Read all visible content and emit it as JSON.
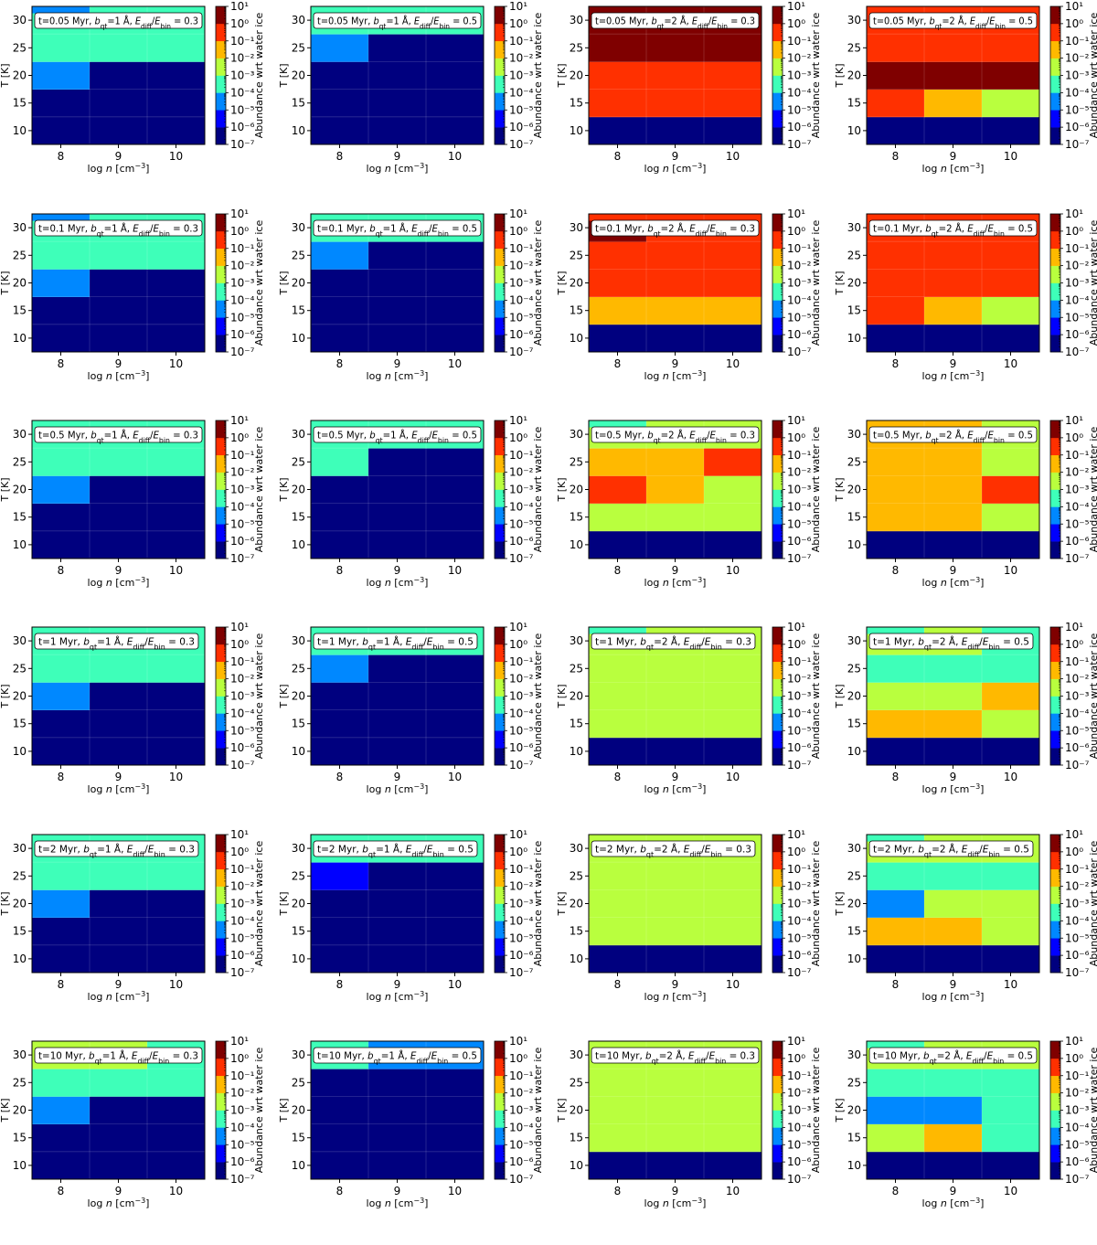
{
  "chart_data": {
    "type": "heatmap",
    "layout": {
      "rows": 6,
      "cols": 4
    },
    "x": [
      8,
      9,
      10
    ],
    "y": [
      10,
      15,
      20,
      25,
      30
    ],
    "xlabel": "log n [cm⁻³]",
    "ylabel": "T [K]",
    "xticks": [
      "8",
      "9",
      "10"
    ],
    "yticks": [
      "10",
      "15",
      "20",
      "25",
      "30"
    ],
    "colorbar": {
      "label": "Abundance wrt water ice",
      "ticks": [
        "10¹",
        "10⁰",
        "10⁻¹",
        "10⁻²",
        "10⁻³",
        "10⁻⁴",
        "10⁻⁵",
        "10⁻⁶",
        "10⁻⁷"
      ],
      "colors": [
        "#00007f",
        "#0000ff",
        "#0088ff",
        "#3effb9",
        "#b9ff3e",
        "#ffb900",
        "#ff3000",
        "#7f0000"
      ]
    },
    "panels": [
      {
        "title": "t=0.05 Myr, b_qt=1 Å, E_diff/E_bin = 0.3",
        "values": [
          [
            0,
            0,
            0
          ],
          [
            0,
            0,
            0
          ],
          [
            2,
            0,
            0
          ],
          [
            3,
            3,
            3
          ],
          [
            2.5,
            3,
            3
          ]
        ]
      },
      {
        "title": "t=0.05 Myr, b_qt=1 Å, E_diff/E_bin = 0.5",
        "values": [
          [
            0,
            0,
            0
          ],
          [
            0,
            0,
            0
          ],
          [
            0,
            0,
            0
          ],
          [
            2,
            0,
            0
          ],
          [
            3,
            3,
            3
          ]
        ]
      },
      {
        "title": "t=0.05 Myr, b_qt=2 Å, E_diff/E_bin = 0.3",
        "values": [
          [
            0,
            0,
            0
          ],
          [
            6,
            6,
            6
          ],
          [
            6,
            6,
            6
          ],
          [
            7,
            7,
            7
          ],
          [
            7,
            7,
            7
          ]
        ]
      },
      {
        "title": "t=0.05 Myr, b_qt=2 Å, E_diff/E_bin = 0.5",
        "values": [
          [
            0,
            0,
            0
          ],
          [
            6,
            5,
            4
          ],
          [
            7,
            7,
            7
          ],
          [
            6,
            6,
            6
          ],
          [
            6,
            6,
            6
          ]
        ]
      },
      {
        "title": "t=0.1 Myr, b_qt=1 Å, E_diff/E_bin = 0.3",
        "values": [
          [
            0,
            0,
            0
          ],
          [
            0,
            0,
            0
          ],
          [
            2,
            0,
            0
          ],
          [
            3,
            3,
            3
          ],
          [
            2.5,
            3,
            3
          ]
        ]
      },
      {
        "title": "t=0.1 Myr, b_qt=1 Å, E_diff/E_bin = 0.5",
        "values": [
          [
            0,
            0,
            0
          ],
          [
            0,
            0,
            0
          ],
          [
            0,
            0,
            0
          ],
          [
            2,
            0,
            0
          ],
          [
            3,
            3,
            3
          ]
        ]
      },
      {
        "title": "t=0.1 Myr, b_qt=2 Å, E_diff/E_bin = 0.3",
        "values": [
          [
            0,
            0,
            0
          ],
          [
            5,
            5,
            5
          ],
          [
            6,
            6,
            6
          ],
          [
            6,
            6,
            6
          ],
          [
            6.5,
            6,
            6
          ]
        ]
      },
      {
        "title": "t=0.1 Myr, b_qt=2 Å, E_diff/E_bin = 0.5",
        "values": [
          [
            0,
            0,
            0
          ],
          [
            6,
            5,
            4
          ],
          [
            6,
            6,
            6
          ],
          [
            6,
            6,
            6
          ],
          [
            6,
            6,
            6
          ]
        ]
      },
      {
        "title": "t=0.5 Myr, b_qt=1 Å, E_diff/E_bin = 0.3",
        "values": [
          [
            0,
            0,
            0
          ],
          [
            0,
            0,
            0
          ],
          [
            2,
            0,
            0
          ],
          [
            3,
            3,
            3
          ],
          [
            3,
            3,
            3
          ]
        ]
      },
      {
        "title": "t=0.5 Myr, b_qt=1 Å, E_diff/E_bin = 0.5",
        "values": [
          [
            0,
            0,
            0
          ],
          [
            0,
            0,
            0
          ],
          [
            0,
            0,
            0
          ],
          [
            3,
            0,
            0
          ],
          [
            3,
            3,
            3
          ]
        ]
      },
      {
        "title": "t=0.5 Myr, b_qt=2 Å, E_diff/E_bin = 0.3",
        "values": [
          [
            0,
            0,
            0
          ],
          [
            4,
            4,
            4
          ],
          [
            6,
            5,
            4
          ],
          [
            5,
            5,
            6
          ],
          [
            3.5,
            4,
            4
          ]
        ]
      },
      {
        "title": "t=0.5 Myr, b_qt=2 Å, E_diff/E_bin = 0.5",
        "values": [
          [
            0,
            0,
            0
          ],
          [
            5,
            5,
            4
          ],
          [
            5,
            5,
            6
          ],
          [
            5,
            5,
            4
          ],
          [
            5,
            5,
            4
          ]
        ]
      },
      {
        "title": "t=1 Myr, b_qt=1 Å, E_diff/E_bin = 0.3",
        "values": [
          [
            0,
            0,
            0
          ],
          [
            0,
            0,
            0
          ],
          [
            2,
            0,
            0
          ],
          [
            3,
            3,
            3
          ],
          [
            3,
            3,
            3
          ]
        ]
      },
      {
        "title": "t=1 Myr, b_qt=1 Å, E_diff/E_bin = 0.5",
        "values": [
          [
            0,
            0,
            0
          ],
          [
            0,
            0,
            0
          ],
          [
            0,
            0,
            0
          ],
          [
            2,
            0,
            0
          ],
          [
            3,
            3,
            3
          ]
        ]
      },
      {
        "title": "t=1 Myr, b_qt=2 Å, E_diff/E_bin = 0.3",
        "values": [
          [
            0,
            0,
            0
          ],
          [
            4,
            4,
            4
          ],
          [
            4,
            4,
            4
          ],
          [
            4,
            4,
            4
          ],
          [
            3.5,
            4,
            4
          ]
        ]
      },
      {
        "title": "t=1 Myr, b_qt=2 Å, E_diff/E_bin = 0.5",
        "values": [
          [
            0,
            0,
            0
          ],
          [
            5,
            5,
            4
          ],
          [
            4,
            4,
            5
          ],
          [
            3,
            3,
            3
          ],
          [
            3.5,
            4,
            3
          ]
        ]
      },
      {
        "title": "t=2 Myr, b_qt=1 Å, E_diff/E_bin = 0.3",
        "values": [
          [
            0,
            0,
            0
          ],
          [
            0,
            0,
            0
          ],
          [
            2,
            0,
            0
          ],
          [
            3,
            3,
            3
          ],
          [
            3,
            3,
            3
          ]
        ]
      },
      {
        "title": "t=2 Myr, b_qt=1 Å, E_diff/E_bin = 0.5",
        "values": [
          [
            0,
            0,
            0
          ],
          [
            0,
            0,
            0
          ],
          [
            0,
            0,
            0
          ],
          [
            1,
            0,
            0
          ],
          [
            3,
            3,
            3
          ]
        ]
      },
      {
        "title": "t=2 Myr, b_qt=2 Å, E_diff/E_bin = 0.3",
        "values": [
          [
            0,
            0,
            0
          ],
          [
            4,
            4,
            4
          ],
          [
            4,
            4,
            4
          ],
          [
            4,
            4,
            4
          ],
          [
            4,
            4,
            4
          ]
        ]
      },
      {
        "title": "t=2 Myr, b_qt=2 Å, E_diff/E_bin = 0.5",
        "values": [
          [
            0,
            0,
            0
          ],
          [
            5,
            5,
            4
          ],
          [
            2,
            4,
            4
          ],
          [
            3,
            3,
            3
          ],
          [
            3.5,
            4,
            4
          ]
        ]
      },
      {
        "title": "t=10 Myr, b_qt=1 Å, E_diff/E_bin = 0.3",
        "values": [
          [
            0,
            0,
            0
          ],
          [
            0,
            0,
            0
          ],
          [
            2,
            0,
            0
          ],
          [
            3,
            3,
            3
          ],
          [
            4,
            4,
            3
          ]
        ]
      },
      {
        "title": "t=10 Myr, b_qt=1 Å, E_diff/E_bin = 0.5",
        "values": [
          [
            0,
            0,
            0
          ],
          [
            0,
            0,
            0
          ],
          [
            0,
            0,
            0
          ],
          [
            0,
            0,
            0
          ],
          [
            3,
            2,
            2
          ]
        ]
      },
      {
        "title": "t=10 Myr, b_qt=2 Å, E_diff/E_bin = 0.3",
        "values": [
          [
            0,
            0,
            0
          ],
          [
            4,
            4,
            4
          ],
          [
            4,
            4,
            4
          ],
          [
            4,
            4,
            4
          ],
          [
            4,
            4,
            4
          ]
        ]
      },
      {
        "title": "t=10 Myr, b_qt=2 Å, E_diff/E_bin = 0.5",
        "values": [
          [
            0,
            0,
            0
          ],
          [
            4,
            5,
            3
          ],
          [
            2,
            2,
            3
          ],
          [
            3,
            3,
            3
          ],
          [
            3.5,
            4,
            4
          ]
        ]
      }
    ]
  }
}
